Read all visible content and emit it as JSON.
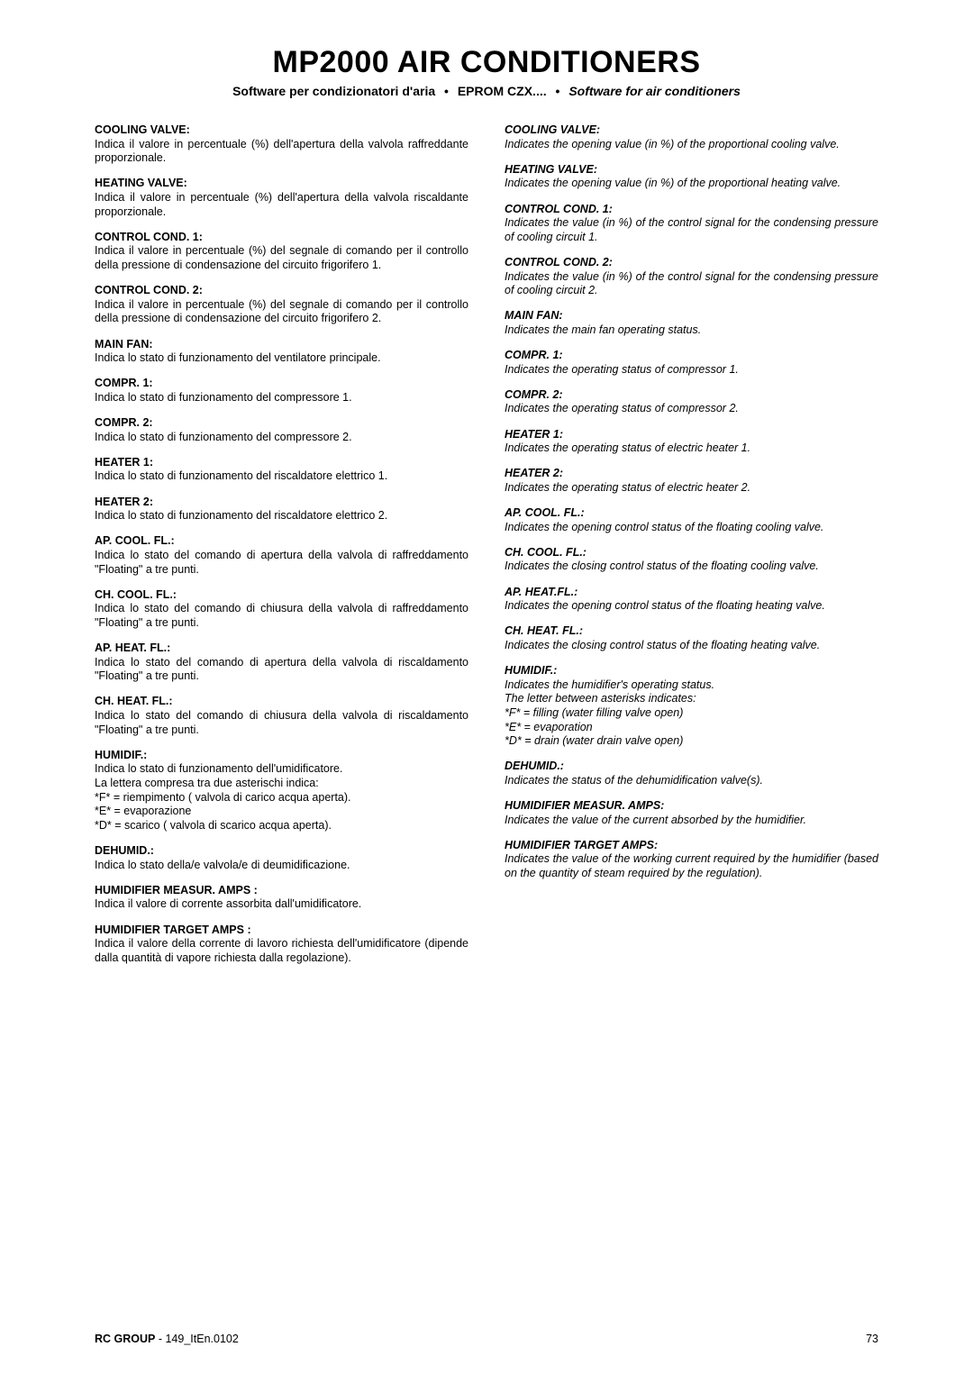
{
  "header": {
    "title": "MP2000 AIR CONDITIONERS",
    "subtitle_it": "Software per condizionatori d'aria",
    "subtitle_mid": "EPROM CZX....",
    "subtitle_en": "Software for air conditioners",
    "bullet": "•"
  },
  "left": {
    "entries": [
      {
        "h": "COOLING VALVE:",
        "b": "Indica il valore in percentuale (%) dell'apertura della valvola raffreddante proporzionale."
      },
      {
        "h": "HEATING VALVE:",
        "b": "Indica il valore in percentuale (%) dell'apertura della valvola riscaldante proporzionale."
      },
      {
        "h": "CONTROL COND.  1:",
        "b": "Indica il valore in percentuale (%) del segnale di comando per il controllo della pressione di condensazione del circuito frigorifero 1."
      },
      {
        "h": "CONTROL COND.  2:",
        "b": "Indica il valore in percentuale (%) del segnale di comando per il controllo della pressione di condensazione del circuito frigorifero 2."
      },
      {
        "h": "MAIN FAN:",
        "b": "Indica lo stato di funzionamento del ventilatore principale."
      },
      {
        "h": "COMPR. 1:",
        "b": "Indica lo stato di funzionamento del compressore 1."
      },
      {
        "h": "COMPR. 2:",
        "b": "Indica lo stato di funzionamento del compressore 2."
      },
      {
        "h": "HEATER 1:",
        "b": "Indica lo stato di funzionamento del riscaldatore elettrico 1."
      },
      {
        "h": "HEATER 2:",
        "b": "Indica lo stato di funzionamento del riscaldatore elettrico 2."
      },
      {
        "h": "AP. COOL. FL.:",
        "b": "Indica lo stato del comando di apertura della valvola di raffreddamento \"Floating\" a tre punti."
      },
      {
        "h": "CH. COOL. FL.:",
        "b": "Indica lo stato del comando di chiusura della valvola di raffreddamento \"Floating\" a tre punti."
      },
      {
        "h": "AP. HEAT. FL.:",
        "b": "Indica lo stato del comando di apertura della valvola di riscaldamento \"Floating\" a tre punti."
      },
      {
        "h": "CH. HEAT. FL.:",
        "b": "Indica lo stato del comando di chiusura della valvola di riscaldamento \"Floating\" a tre punti."
      },
      {
        "h": "HUMIDIF.:",
        "b": "Indica lo stato di funzionamento dell'umidificatore.\nLa lettera compresa tra due asterischi indica:\n*F* = riempimento ( valvola di carico acqua aperta).\n*E* = evaporazione\n*D* = scarico ( valvola di scarico acqua aperta)."
      },
      {
        "h": "DEHUMID.:",
        "b": "Indica lo stato della/e valvola/e di deumidificazione."
      },
      {
        "h": "HUMIDIFIER MEASUR. AMPS :",
        "b": "Indica il valore di corrente assorbita dall'umidificatore."
      },
      {
        "h": "HUMIDIFIER TARGET AMPS :",
        "b": "Indica il valore della corrente di lavoro richiesta dell'umidificatore (dipende dalla quantità di vapore richiesta dalla regolazione)."
      }
    ]
  },
  "right": {
    "entries": [
      {
        "h": "COOLING VALVE:",
        "b": "Indicates the opening value (in %) of the proportional cooling valve."
      },
      {
        "h": "HEATING VALVE:",
        "b": "Indicates the opening value (in %) of the proportional heating valve."
      },
      {
        "h": "CONTROL COND. 1:",
        "b": "Indicates the value (in %) of the control signal for the condensing pressure of cooling circuit 1."
      },
      {
        "h": "CONTROL COND. 2:",
        "b": "Indicates the value (in %) of the control signal for the condensing pressure of cooling circuit 2."
      },
      {
        "h": "MAIN FAN:",
        "b": "Indicates the main fan operating status."
      },
      {
        "h": "COMPR. 1:",
        "b": "Indicates the operating status of compressor 1."
      },
      {
        "h": "COMPR. 2:",
        "b": "Indicates the operating status of compressor 2."
      },
      {
        "h": "HEATER 1:",
        "b": "Indicates the operating status of electric heater 1."
      },
      {
        "h": "HEATER 2:",
        "b": "Indicates the operating status of electric heater 2."
      },
      {
        "h": "AP. COOL. FL.:",
        "b": "Indicates the opening control status of the floating cooling valve."
      },
      {
        "h": "CH. COOL. FL.:",
        "b": "Indicates the closing control status of the floating cooling valve."
      },
      {
        "h": "AP. HEAT.FL.:",
        "b": "Indicates the opening control status of the floating heating valve."
      },
      {
        "h": "CH. HEAT. FL.:",
        "b": "Indicates the closing control status of the floating heating valve."
      },
      {
        "h": "HUMIDIF.:",
        "b": "Indicates the humidifier's operating status.\nThe letter between asterisks indicates:\n*F* = filling (water filling valve open)\n*E* = evaporation\n*D* = drain (water drain valve open)"
      },
      {
        "h": "DEHUMID.:",
        "b": "Indicates the status of the dehumidification valve(s)."
      },
      {
        "h": "HUMIDIFIER MEASUR. AMPS:",
        "b": "Indicates the value of the current absorbed by the humidifier."
      },
      {
        "h": "HUMIDIFIER TARGET AMPS:",
        "b": "Indicates the value of the working current required by the humidifier (based on the quantity of steam required by the regulation)."
      }
    ]
  },
  "footer": {
    "ref_bold": "RC GROUP",
    "ref_rest": " - 149_ItEn.0102",
    "pagenum": "73"
  }
}
